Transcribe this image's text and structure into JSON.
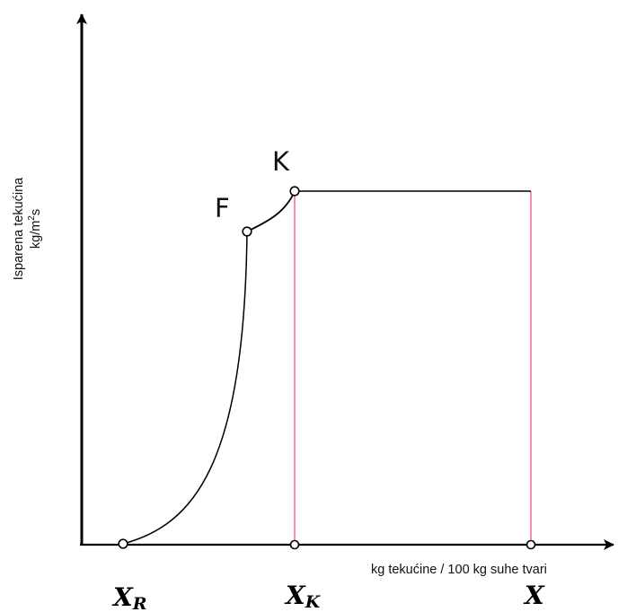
{
  "y_axis": {
    "label_line1": "Isparena tekućina",
    "label_line2_base": "kg/m",
    "label_line2_exp": "2",
    "label_line2_tail": "s"
  },
  "x_axis": {
    "label": "kg tekućine / 100 kg suhe tvari"
  },
  "points": {
    "F": "F",
    "K": "K"
  },
  "x_marks": {
    "xr_base": "X",
    "xr_sub": "R",
    "xk_base": "X",
    "xk_sub": "K",
    "x": "X"
  },
  "colors": {
    "curve": "#000000",
    "guide_lines": "#f0557a",
    "axes": "#000000"
  }
}
